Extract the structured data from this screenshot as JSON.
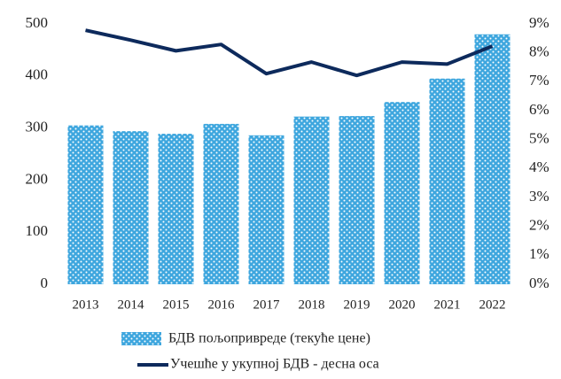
{
  "chart_data": {
    "type": "bar_line",
    "categories": [
      "2013",
      "2014",
      "2015",
      "2016",
      "2017",
      "2018",
      "2019",
      "2020",
      "2021",
      "2022"
    ],
    "series": [
      {
        "name": "БДВ пољопривреде (текуће цене)",
        "type": "bar",
        "color": "#3ea6de",
        "values": [
          305,
          294,
          289,
          308,
          286,
          322,
          323,
          350,
          395,
          480
        ]
      },
      {
        "name": "Учешће у укупној БДВ - десна оса",
        "type": "line",
        "axis": "y2",
        "color": "#0d2a5c",
        "values": [
          8.78,
          8.44,
          8.07,
          8.29,
          7.28,
          7.68,
          7.22,
          7.68,
          7.61,
          8.23
        ]
      }
    ],
    "ylim": [
      0,
      500
    ],
    "yticks": [
      0,
      100,
      200,
      300,
      400,
      500
    ],
    "y2lim": [
      0,
      9
    ],
    "y2ticks": [
      {
        "value": 0,
        "label": "0%"
      },
      {
        "value": 1,
        "label": "1%"
      },
      {
        "value": 2,
        "label": "2%"
      },
      {
        "value": 3,
        "label": "3%"
      },
      {
        "value": 4,
        "label": "4%"
      },
      {
        "value": 5,
        "label": "5%"
      },
      {
        "value": 6,
        "label": "6%"
      },
      {
        "value": 7,
        "label": "7%"
      },
      {
        "value": 8,
        "label": "8%"
      },
      {
        "value": 9,
        "label": "9%"
      }
    ],
    "legend": "bottom"
  }
}
